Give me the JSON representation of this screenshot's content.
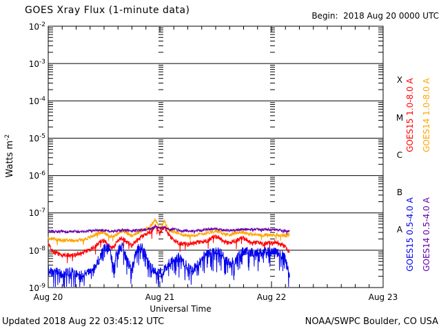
{
  "header": {
    "title": "GOES Xray Flux (1-minute data)",
    "begin": "Begin:  2018 Aug 20 0000 UTC"
  },
  "footer": {
    "updated": "Updated 2018 Aug 22 03:45:12 UTC",
    "source": "NOAA/SWPC Boulder, CO USA"
  },
  "axes": {
    "y_title": {
      "base": "Watts m",
      "exp": "-2"
    },
    "y_ticks": [
      {
        "base": "10",
        "exp": "-2"
      },
      {
        "base": "10",
        "exp": "-3"
      },
      {
        "base": "10",
        "exp": "-4"
      },
      {
        "base": "10",
        "exp": "-5"
      },
      {
        "base": "10",
        "exp": "-6"
      },
      {
        "base": "10",
        "exp": "-7"
      },
      {
        "base": "10",
        "exp": "-8"
      },
      {
        "base": "10",
        "exp": "-9"
      }
    ],
    "x_title": "Universal Time",
    "x_ticks": [
      "Aug 20",
      "Aug 21",
      "Aug 22",
      "Aug 23"
    ]
  },
  "chart_data": {
    "type": "line",
    "title": "GOES Xray Flux (1-minute data)",
    "xlabel": "Universal Time",
    "ylabel": "Watts m^-2",
    "y_scale": "log",
    "ylim": [
      1e-09,
      0.01
    ],
    "x_start": "2018 Aug 20 0000 UTC",
    "x_end": "2018 Aug 23 0000 UTC",
    "x_tick_labels": [
      "Aug 20",
      "Aug 21",
      "Aug 22",
      "Aug 23"
    ],
    "sample_step_hours": 1,
    "data_end_hour": 51.9,
    "flux_class_bands": [
      {
        "label": "X",
        "range": [
          0.0001,
          0.001
        ]
      },
      {
        "label": "M",
        "range": [
          1e-05,
          0.0001
        ]
      },
      {
        "label": "C",
        "range": [
          1e-06,
          1e-05
        ]
      },
      {
        "label": "B",
        "range": [
          1e-07,
          1e-06
        ]
      },
      {
        "label": "A",
        "range": [
          1e-08,
          1e-07
        ]
      }
    ],
    "series": [
      {
        "name": "GOES15 1.0-8.0 A",
        "color": "#ff0000",
        "values_wm2": [
          1.5e-08,
          9e-09,
          8e-09,
          7e-09,
          8e-09,
          7e-09,
          7.5e-09,
          8e-09,
          9e-09,
          1e-08,
          1.3e-08,
          1.6e-08,
          1.8e-08,
          1.3e-08,
          1.1e-08,
          1.8e-08,
          2.2e-08,
          1.6e-08,
          1.3e-08,
          1.8e-08,
          2.2e-08,
          2.6e-08,
          3.2e-08,
          4.5e-08,
          2.8e-08,
          4.2e-08,
          2.4e-08,
          1.8e-08,
          1.6e-08,
          1.5e-08,
          1.4e-08,
          1.5e-08,
          1.6e-08,
          1.6e-08,
          1.8e-08,
          2.1e-08,
          2.3e-08,
          2e-08,
          1.6e-08,
          1.5e-08,
          1.8e-08,
          2e-08,
          2.1e-08,
          1.7e-08,
          1.5e-08,
          1.6e-08,
          1.5e-08,
          1.6e-08,
          1.5e-08,
          1.6e-08,
          1.4e-08,
          1.2e-08,
          8e-09
        ]
      },
      {
        "name": "GOES14 1.0-8.0 A",
        "color": "#ffa500",
        "values_wm2": [
          2.1e-08,
          2e-08,
          1.9e-08,
          1.8e-08,
          1.9e-08,
          1.8e-08,
          1.85e-08,
          1.9e-08,
          2e-08,
          2.2e-08,
          2.6e-08,
          2.9e-08,
          3e-08,
          2.5e-08,
          2.3e-08,
          2.9e-08,
          3.3e-08,
          2.8e-08,
          2.5e-08,
          2.9e-08,
          3.3e-08,
          3.7e-08,
          4.4e-08,
          6.5e-08,
          4e-08,
          6e-08,
          3.3e-08,
          3.2e-08,
          2.8e-08,
          2.6e-08,
          2.5e-08,
          2.5e-08,
          2.6e-08,
          2.7e-08,
          2.9e-08,
          3.1e-08,
          3.3e-08,
          3e-08,
          2.7e-08,
          2.6e-08,
          2.9e-08,
          3e-08,
          3.1e-08,
          2.8e-08,
          2.6e-08,
          2.6e-08,
          2.5e-08,
          2.6e-08,
          2.5e-08,
          2.6e-08,
          2.5e-08,
          2.5e-08,
          2.6e-08
        ]
      },
      {
        "name": "GOES15 0.5-4.0 A",
        "color": "#0000ee",
        "values_wm2": [
          3e-09,
          2.4e-09,
          2.8e-09,
          2.2e-09,
          2.5e-09,
          2.8e-09,
          2.3e-09,
          2.1e-09,
          2.6e-09,
          3e-09,
          3.5e-09,
          6e-09,
          1.1e-08,
          1.2e-08,
          4e-09,
          1e-08,
          1.25e-08,
          5e-09,
          3.5e-09,
          1e-08,
          1.3e-08,
          7e-09,
          3.5e-09,
          2.8e-09,
          2.5e-09,
          3e-09,
          4.5e-09,
          5.5e-09,
          6.5e-09,
          5e-09,
          3.5e-09,
          3e-09,
          4e-09,
          6.5e-09,
          8e-09,
          8.5e-09,
          9e-09,
          9e-09,
          6e-09,
          4.5e-09,
          5e-09,
          8e-09,
          9.5e-09,
          9e-09,
          8.5e-09,
          9e-09,
          8.5e-09,
          9e-09,
          8.5e-09,
          9e-09,
          8e-09,
          6e-09,
          2e-09
        ]
      },
      {
        "name": "GOES14 0.5-4.0 A",
        "color": "#6600aa",
        "values_wm2": [
          3.2e-08,
          3.2e-08,
          3.1e-08,
          3.2e-08,
          3.1e-08,
          3.2e-08,
          3.2e-08,
          3.1e-08,
          3.2e-08,
          3.3e-08,
          3.4e-08,
          3.4e-08,
          3.4e-08,
          3.3e-08,
          3.2e-08,
          3.4e-08,
          3.5e-08,
          3.4e-08,
          3.3e-08,
          3.4e-08,
          3.5e-08,
          3.6e-08,
          3.8e-08,
          4.2e-08,
          3.8e-08,
          4e-08,
          3.5e-08,
          3.8e-08,
          3.4e-08,
          3.3e-08,
          3.3e-08,
          3.3e-08,
          3.4e-08,
          3.4e-08,
          3.6e-08,
          3.7e-08,
          3.8e-08,
          3.6e-08,
          3.4e-08,
          3.4e-08,
          3.5e-08,
          3.6e-08,
          3.6e-08,
          3.6e-08,
          3.6e-08,
          3.6e-08,
          3.6e-08,
          3.6e-08,
          3.5e-08,
          3.5e-08,
          3.4e-08,
          3.3e-08,
          3.2e-08
        ]
      }
    ]
  }
}
